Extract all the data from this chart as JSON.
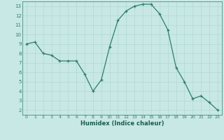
{
  "x": [
    0,
    1,
    2,
    3,
    4,
    5,
    6,
    7,
    8,
    9,
    10,
    11,
    12,
    13,
    14,
    15,
    16,
    17,
    18,
    19,
    20,
    21,
    22,
    23
  ],
  "y": [
    9.0,
    9.2,
    8.0,
    7.8,
    7.2,
    7.2,
    7.2,
    5.8,
    4.0,
    5.2,
    8.7,
    11.5,
    12.5,
    13.0,
    13.2,
    13.2,
    12.2,
    10.5,
    6.5,
    5.0,
    3.2,
    3.5,
    2.8,
    2.0
  ],
  "xlabel": "Humidex (Indice chaleur)",
  "xlim": [
    -0.5,
    23.5
  ],
  "ylim": [
    1.5,
    13.5
  ],
  "yticks": [
    2,
    3,
    4,
    5,
    6,
    7,
    8,
    9,
    10,
    11,
    12,
    13
  ],
  "xticks": [
    0,
    1,
    2,
    3,
    4,
    5,
    6,
    7,
    8,
    9,
    10,
    11,
    12,
    13,
    14,
    15,
    16,
    17,
    18,
    19,
    20,
    21,
    22,
    23
  ],
  "line_color": "#2e7d6e",
  "marker_color": "#2e7d6e",
  "bg_color": "#c8e8e5",
  "grid_color": "#b0d8d4",
  "tick_label_color": "#2e7d6e",
  "xlabel_color": "#1a5c50",
  "spine_color": "#2e7d6e"
}
